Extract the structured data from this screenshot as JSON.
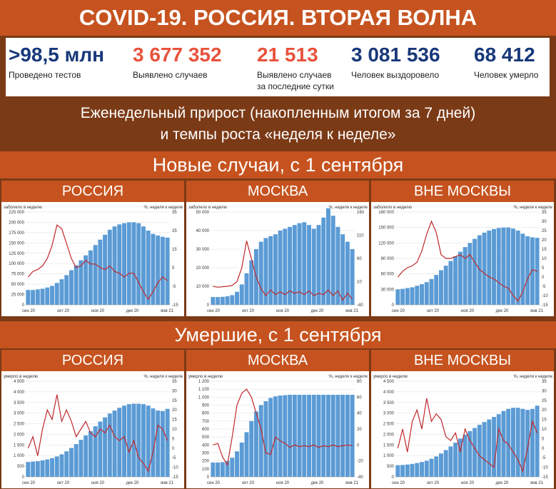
{
  "title": "COVID-19. РОССИЯ. ВТОРАЯ ВОЛНА",
  "stats": [
    {
      "value": ">98,5 млн",
      "label": "Проведено тестов",
      "color": "#17387a"
    },
    {
      "value": "3 677 352",
      "label": "Выявлено случаев",
      "color": "#e8523c"
    },
    {
      "value": "21 513",
      "label": "Выявлено случаев\nза последние сутки",
      "color": "#e8523c"
    },
    {
      "value": "3 081 536",
      "label": "Человек выздоровело",
      "color": "#17387a"
    },
    {
      "value": "68 412",
      "label": "Человек умерло",
      "color": "#17387a"
    }
  ],
  "subtitle_line1": "Еженедельный прирост (накопленным итогом за 7 дней)",
  "subtitle_line2": "и темпы роста «неделя к неделе»",
  "section_cases": "Новые случаи, с 1 сентября",
  "section_deaths": "Умершие, с 1 сентября",
  "colors": {
    "bars": "#5b9bd5",
    "line": "#c0282d",
    "accent": "#c6531f",
    "background": "#7b3a16"
  },
  "chart_data": [
    {
      "type": "bar",
      "region": "РОССИЯ",
      "ylabel_left": "заболело в неделю",
      "ylabel_right": "%, неделя к неделе",
      "x_ticks": [
        "сен 20",
        "окт 20",
        "ноя 20",
        "дек 20",
        "янв 21"
      ],
      "ylim": [
        0,
        225000
      ],
      "yticks": [
        0,
        25000,
        50000,
        75000,
        100000,
        125000,
        150000,
        175000,
        200000,
        225000
      ],
      "ytick_labels": [
        "0",
        "25 000",
        "50 000",
        "75 000",
        "100 000",
        "125 000",
        "150 000",
        "175 000",
        "200 000",
        "225 000"
      ],
      "y2lim": [
        -15,
        35
      ],
      "y2ticks": [
        -15,
        -5,
        5,
        15,
        25,
        35
      ],
      "series": [
        {
          "kind": "bar",
          "values": [
            36000,
            36000,
            37500,
            39000,
            42000,
            46000,
            53000,
            62000,
            72000,
            84000,
            96000,
            108000,
            120000,
            132000,
            145000,
            158000,
            170000,
            182000,
            190000,
            195000,
            198000,
            200000,
            200000,
            198000,
            190000,
            180000,
            172000,
            168000,
            165000,
            163000
          ]
        },
        {
          "kind": "line",
          "values": [
            0,
            3,
            4,
            6,
            10,
            17,
            28,
            26,
            18,
            10,
            5,
            6,
            9,
            7,
            7,
            5,
            4,
            6,
            3,
            2,
            0,
            2,
            2,
            -3,
            -8,
            -12,
            -8,
            -3,
            0,
            -2
          ]
        }
      ]
    },
    {
      "type": "bar",
      "region": "МОСКВА",
      "ylabel_left": "заболело в неделю",
      "ylabel_right": "%, неделя к неделе",
      "x_ticks": [
        "сен 20",
        "окт 20",
        "ноя 20",
        "дек 20",
        "янв 21"
      ],
      "ylim": [
        0,
        50000
      ],
      "yticks": [
        0,
        10000,
        20000,
        30000,
        40000,
        50000
      ],
      "ytick_labels": [
        "0",
        "10 000",
        "20 000",
        "30 000",
        "40 000",
        "50 000"
      ],
      "y2lim": [
        -40,
        160
      ],
      "y2ticks": [
        -40,
        10,
        60,
        110,
        160
      ],
      "series": [
        {
          "kind": "bar",
          "values": [
            4200,
            4200,
            4300,
            4600,
            5200,
            7000,
            11000,
            17000,
            24000,
            30000,
            34000,
            36000,
            37000,
            38000,
            40000,
            41000,
            42000,
            43000,
            44000,
            44500,
            43000,
            41000,
            43000,
            47000,
            52000,
            48000,
            42000,
            38000,
            34000,
            30000
          ]
        },
        {
          "kind": "line",
          "values": [
            0,
            -2,
            -1,
            0,
            2,
            10,
            40,
            98,
            60,
            20,
            -5,
            -20,
            -8,
            -18,
            -12,
            -18,
            -10,
            -15,
            -12,
            -18,
            -10,
            -20,
            -15,
            -18,
            -8,
            -20,
            -10,
            -30,
            -15,
            -28
          ]
        }
      ]
    },
    {
      "type": "bar",
      "region": "ВНЕ МОСКВЫ",
      "ylabel_left": "заболело в неделю",
      "ylabel_right": "%, неделя к неделе",
      "x_ticks": [
        "сен 20",
        "окт 20",
        "ноя 20",
        "дек 20",
        "янв 21"
      ],
      "ylim": [
        0,
        180000
      ],
      "yticks": [
        0,
        30000,
        60000,
        90000,
        120000,
        150000,
        180000
      ],
      "ytick_labels": [
        "0",
        "30 000",
        "60 000",
        "90 000",
        "120 000",
        "150 000",
        "180 000"
      ],
      "y2lim": [
        -15,
        35
      ],
      "y2ticks": [
        -15,
        -10,
        -5,
        0,
        5,
        10,
        15,
        20,
        25,
        30,
        35
      ],
      "series": [
        {
          "kind": "bar",
          "values": [
            30000,
            31000,
            32500,
            34000,
            37000,
            40000,
            44000,
            50000,
            58000,
            67000,
            76000,
            85000,
            94000,
            103000,
            112000,
            120000,
            128000,
            135000,
            140000,
            144000,
            147000,
            149000,
            150000,
            150000,
            148000,
            144000,
            138000,
            133000,
            131000,
            130000
          ]
        },
        {
          "kind": "line",
          "values": [
            0,
            3,
            5,
            6,
            8,
            14,
            23,
            30,
            24,
            12,
            10,
            10,
            11,
            12,
            10,
            12,
            8,
            4,
            2,
            0,
            -1,
            -3,
            -5,
            -6,
            -10,
            -13,
            -8,
            -1,
            4,
            3
          ]
        }
      ]
    },
    {
      "type": "bar",
      "region": "РОССИЯ",
      "ylabel_left": "умерло в неделю",
      "ylabel_right": "%, неделя к неделе",
      "x_ticks": [
        "сен 20",
        "окт 20",
        "ноя 20",
        "дек 20",
        "янв 21"
      ],
      "ylim": [
        0,
        4500
      ],
      "yticks": [
        0,
        500,
        1000,
        1500,
        2000,
        2500,
        3000,
        3500,
        4000,
        4500
      ],
      "ytick_labels": [
        "0",
        "500",
        "1 000",
        "1 500",
        "2 000",
        "2 500",
        "3 000",
        "3 500",
        "4 000",
        "4 500"
      ],
      "y2lim": [
        -15,
        35
      ],
      "y2ticks": [
        -15,
        -10,
        -5,
        0,
        5,
        10,
        15,
        20,
        25,
        30,
        35
      ],
      "series": [
        {
          "kind": "bar",
          "values": [
            700,
            720,
            740,
            780,
            820,
            880,
            960,
            1060,
            1200,
            1360,
            1540,
            1740,
            1950,
            2150,
            2380,
            2600,
            2800,
            2980,
            3120,
            3250,
            3350,
            3420,
            3440,
            3440,
            3420,
            3350,
            3220,
            3120,
            3100,
            3200
          ]
        },
        {
          "kind": "line",
          "values": [
            0,
            6,
            -4,
            10,
            20,
            15,
            28,
            14,
            20,
            14,
            6,
            10,
            14,
            8,
            6,
            10,
            8,
            12,
            6,
            4,
            6,
            -2,
            4,
            -5,
            -8,
            -12,
            -2,
            12,
            10,
            4
          ]
        }
      ]
    },
    {
      "type": "bar",
      "region": "МОСКВА",
      "ylabel_left": "умерло в неделю",
      "ylabel_right": "%, неделя к неделе",
      "x_ticks": [
        "сен 20",
        "окт 20",
        "ноя 20",
        "дек 20",
        "янв 21"
      ],
      "ylim": [
        0,
        1200
      ],
      "yticks": [
        0,
        100,
        200,
        300,
        400,
        500,
        600,
        700,
        800,
        900,
        1000,
        1100,
        1200
      ],
      "ytick_labels": [
        "0",
        "100",
        "200",
        "300",
        "400",
        "500",
        "600",
        "700",
        "800",
        "900",
        "1 000",
        "1 100",
        "1 200"
      ],
      "y2lim": [
        -40,
        80
      ],
      "y2ticks": [
        -40,
        -20,
        0,
        20,
        40,
        60,
        80
      ],
      "series": [
        {
          "kind": "bar",
          "values": [
            180,
            180,
            185,
            200,
            240,
            320,
            430,
            560,
            700,
            820,
            900,
            950,
            990,
            1010,
            1020,
            1025,
            1030,
            1030,
            1030,
            1030,
            1030,
            1030,
            1030,
            1030,
            1030,
            1030,
            1030,
            1030,
            1030,
            1030
          ]
        },
        {
          "kind": "line",
          "values": [
            0,
            2,
            -15,
            -25,
            10,
            50,
            65,
            70,
            60,
            40,
            20,
            -10,
            -12,
            10,
            5,
            2,
            -3,
            0,
            -2,
            -1,
            -2,
            0,
            -3,
            -1,
            -2,
            0,
            -2,
            -1,
            0,
            -1
          ]
        }
      ]
    },
    {
      "type": "bar",
      "region": "ВНЕ МОСКВЫ",
      "ylabel_left": "умерло в неделю",
      "ylabel_right": "%, неделя к неделе",
      "x_ticks": [
        "сен 20",
        "окт 20",
        "ноя 20",
        "дек 20",
        "янв 21"
      ],
      "ylim": [
        0,
        4500
      ],
      "yticks": [
        0,
        500,
        1000,
        1500,
        2000,
        2500,
        3000,
        3500,
        4000,
        4500
      ],
      "ytick_labels": [
        "0",
        "500",
        "1 000",
        "1 500",
        "2 000",
        "2 500",
        "3 000",
        "3 500",
        "4 000",
        "4 500"
      ],
      "y2lim": [
        -15,
        35
      ],
      "y2ticks": [
        -15,
        -10,
        -5,
        0,
        5,
        10,
        15,
        20,
        25,
        30,
        35
      ],
      "series": [
        {
          "kind": "bar",
          "values": [
            550,
            560,
            580,
            610,
            650,
            700,
            760,
            850,
            960,
            1100,
            1260,
            1430,
            1610,
            1800,
            1980,
            2150,
            2300,
            2450,
            2580,
            2700,
            2820,
            2950,
            3100,
            3200,
            3250,
            3250,
            3200,
            3150,
            3200,
            3350
          ]
        },
        {
          "kind": "line",
          "values": [
            0,
            10,
            -2,
            14,
            20,
            10,
            26,
            14,
            18,
            15,
            6,
            4,
            8,
            -2,
            10,
            4,
            0,
            -4,
            -6,
            -8,
            -10,
            10,
            4,
            2,
            -2,
            -6,
            -12,
            0,
            14,
            8
          ]
        }
      ]
    }
  ]
}
